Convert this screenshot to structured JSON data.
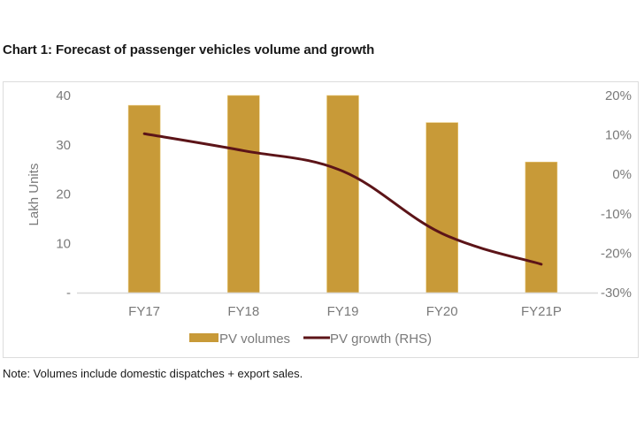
{
  "title": "Chart 1: Forecast of passenger vehicles volume and growth",
  "note": "Note: Volumes include domestic dispatches + export sales.",
  "colors": {
    "bar": "#c89a38",
    "line": "#5c1418",
    "axis_text": "#7a7a7a",
    "baseline": "#d9d9d9"
  },
  "chart_data": {
    "type": "bar",
    "title": "Chart 1: Forecast of passenger vehicles volume and growth",
    "categories": [
      "FY17",
      "FY18",
      "FY19",
      "FY20",
      "FY21P"
    ],
    "series": [
      {
        "name": "PV volumes",
        "type": "bar",
        "axis": "left",
        "values": [
          38.0,
          40.0,
          40.0,
          34.5,
          26.5
        ]
      },
      {
        "name": "PV growth (RHS)",
        "type": "line",
        "axis": "right",
        "values": [
          10.3,
          6.0,
          0.8,
          -15.0,
          -22.8
        ]
      }
    ],
    "xlabel": "",
    "ylabel": "Lakh Units",
    "ylim": [
      0,
      40
    ],
    "yticks": [
      "-",
      "10",
      "20",
      "30",
      "40"
    ],
    "y2label": "",
    "y2lim": [
      -30,
      20
    ],
    "y2ticks": [
      "-30%",
      "-20%",
      "-10%",
      "0%",
      "10%",
      "20%"
    ],
    "grid": false,
    "legend": {
      "position": "bottom",
      "entries": [
        "PV volumes",
        "PV growth (RHS)"
      ]
    }
  }
}
